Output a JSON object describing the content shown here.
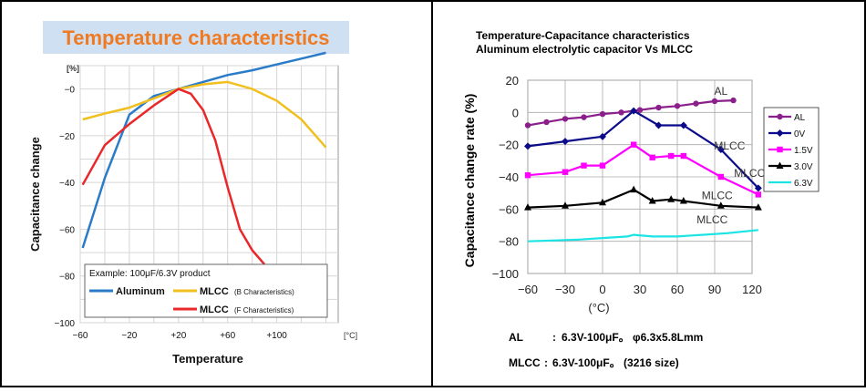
{
  "chart_data": [
    {
      "type": "line",
      "title": "Temperature characteristics",
      "xlabel": "Temperature",
      "ylabel": "Capacitance change",
      "x_unit": "[°C]",
      "y_unit": "[%]",
      "xlim": [
        -60,
        150
      ],
      "ylim": [
        -100,
        10
      ],
      "x_ticks": [
        -60,
        -20,
        20,
        60,
        100
      ],
      "x_tick_labels": [
        "−60",
        "−20",
        "+20",
        "+60",
        "+100"
      ],
      "y_ticks": [
        0,
        -20,
        -40,
        -60,
        -80,
        -100
      ],
      "y_tick_labels": [
        "−0",
        "−20",
        "−40",
        "−60",
        "−80",
        "−100"
      ],
      "legend_title": "Example: 100μF/6.3V product",
      "series": [
        {
          "name": "Aluminum",
          "color": "#2a7bc8",
          "x": [
            -58,
            -40,
            -20,
            0,
            20,
            40,
            60,
            80,
            100,
            120,
            140
          ],
          "y": [
            -68,
            -38,
            -11,
            -3,
            0,
            3,
            6,
            8,
            10.5,
            13,
            15.5
          ]
        },
        {
          "name": "MLCC (B Characteristics)",
          "color": "#f0c020",
          "x": [
            -58,
            -40,
            -20,
            0,
            20,
            40,
            60,
            80,
            100,
            120,
            140
          ],
          "y": [
            -13,
            -10.5,
            -8,
            -4,
            0,
            2,
            3,
            0,
            -5,
            -13,
            -25
          ]
        },
        {
          "name": "MLCC (F Characteristics)",
          "color": "#e8282a",
          "x": [
            -58,
            -40,
            -20,
            0,
            20,
            30,
            40,
            50,
            60,
            70,
            80,
            90
          ],
          "y": [
            -41,
            -24,
            -15,
            -7,
            0,
            -2,
            -9,
            -22,
            -42,
            -60,
            -69,
            -75
          ]
        }
      ],
      "legend_labels": {
        "aluminum": "Aluminum",
        "mlcc_b": "MLCC",
        "mlcc_b_suffix": "(B Characteristics)",
        "mlcc_f": "MLCC",
        "mlcc_f_suffix": "(F Characteristics)"
      }
    },
    {
      "type": "line",
      "title": "Temperature-Capacitance characteristics",
      "subtitle": "Aluminum electrolytic capacitor Vs MLCC",
      "xlabel": "(°C)",
      "ylabel": "Capacitance change rate (%)",
      "xlim": [
        -60,
        120
      ],
      "ylim": [
        -100,
        20
      ],
      "x_ticks": [
        -60,
        -30,
        0,
        30,
        60,
        90,
        120
      ],
      "x_tick_labels": [
        "−60",
        "−30",
        "0",
        "30",
        "60",
        "90",
        "120"
      ],
      "y_ticks": [
        20,
        0,
        -20,
        -40,
        -60,
        -80,
        -100
      ],
      "y_tick_labels": [
        "20",
        "0",
        "−20",
        "−40",
        "−60",
        "−80",
        "−100"
      ],
      "series": [
        {
          "name": "AL",
          "color": "#8b1f8b",
          "marker": "circle",
          "x": [
            -60,
            -45,
            -30,
            -15,
            0,
            15,
            30,
            45,
            60,
            75,
            90,
            105
          ],
          "y": [
            -8,
            -6,
            -4,
            -3,
            -1,
            0,
            1.5,
            3,
            4,
            5.5,
            7,
            7.5
          ]
        },
        {
          "name": "0V",
          "color": "#0a0a8a",
          "marker": "diamond",
          "x": [
            -60,
            -30,
            0,
            25,
            45,
            65,
            95,
            125
          ],
          "y": [
            -21,
            -18,
            -15,
            1,
            -8,
            -8,
            -23,
            -47
          ]
        },
        {
          "name": "1.5V",
          "color": "#ff00ff",
          "marker": "square",
          "x": [
            -60,
            -30,
            -15,
            0,
            25,
            40,
            55,
            65,
            95,
            125
          ],
          "y": [
            -39,
            -37,
            -33,
            -33,
            -20,
            -28,
            -27,
            -27,
            -40,
            -51
          ]
        },
        {
          "name": "3.0V",
          "color": "#000000",
          "marker": "triangle",
          "x": [
            -60,
            -30,
            0,
            25,
            40,
            55,
            65,
            95,
            125
          ],
          "y": [
            -59,
            -58,
            -56,
            -48,
            -55,
            -54,
            -55,
            -58,
            -59
          ]
        },
        {
          "name": "6.3V",
          "color": "#1ce4e4",
          "marker": "line",
          "x": [
            -60,
            -40,
            -20,
            0,
            20,
            25,
            40,
            60,
            80,
            100,
            125
          ],
          "y": [
            -80,
            -79.5,
            -79,
            -78,
            -77,
            -76,
            -77,
            -77,
            -76,
            -75,
            -73
          ]
        }
      ],
      "annotations": [
        {
          "text": "AL",
          "x": 95,
          "y": 11
        },
        {
          "text": "MLCC",
          "x": 102,
          "y": -23
        },
        {
          "text": "MLCC",
          "x": 118,
          "y": -40
        },
        {
          "text": "MLCC",
          "x": 92,
          "y": -54
        },
        {
          "text": "MLCC",
          "x": 88,
          "y": -69
        }
      ],
      "notes": [
        {
          "label": "AL",
          "sep": ":",
          "value": "6.3V-100μF。 φ6.3x5.8Lmm"
        },
        {
          "label": "MLCC",
          "sep": ":",
          "value": "6.3V-100μF。 (3216 size)"
        }
      ]
    }
  ]
}
